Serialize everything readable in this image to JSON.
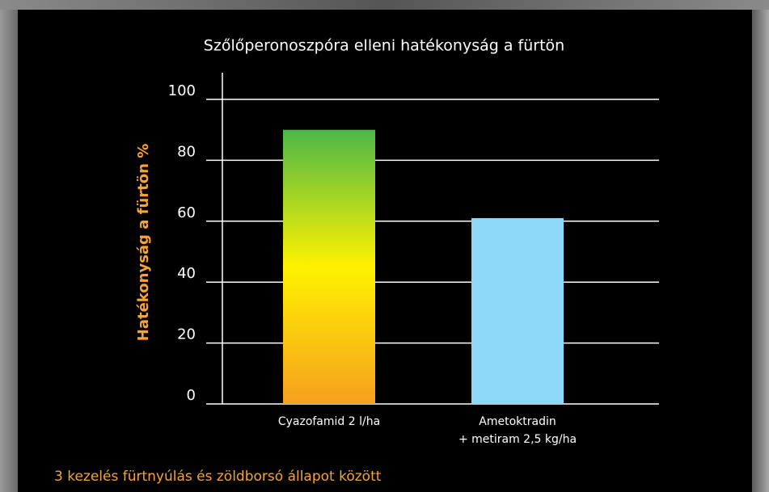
{
  "chart_data": {
    "type": "bar",
    "title": "Szőlőperonoszpóra  elleni hatékonyság a fürtön",
    "ylabel": "Hatékonyság a fürtön %",
    "footnote": "3 kezelés fürtnyúlás és zöldborsó állapot között",
    "categories": [
      "Cyazofamid 2 l/ha",
      "Ametoktradin\n+ metiram 2,5 kg/ha"
    ],
    "values": [
      90,
      61
    ],
    "colors": [
      [
        "#4cb848",
        "#fff200",
        "#f6a01e"
      ],
      [
        "#8ed8f8"
      ]
    ],
    "ylim": [
      0,
      100
    ],
    "yticks": [
      0,
      20,
      40,
      60,
      80,
      100
    ],
    "grid": true
  }
}
